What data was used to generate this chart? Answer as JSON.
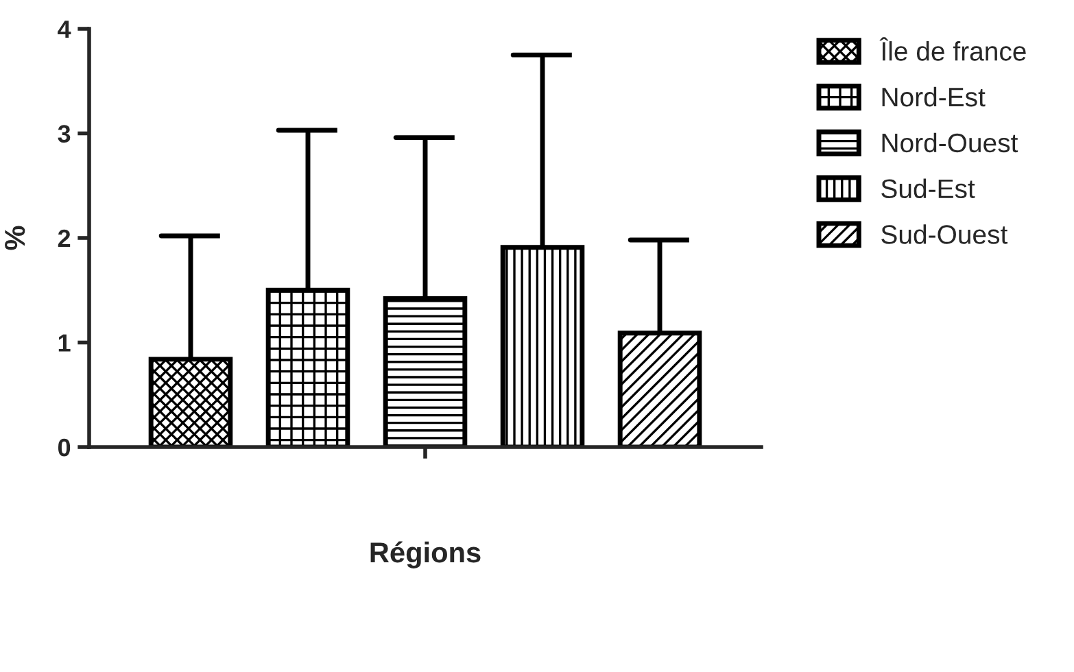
{
  "chart_data": {
    "type": "bar",
    "xlabel": "Régions",
    "ylabel": "%",
    "categories": [
      null
    ],
    "series": [
      {
        "name": "Île de france",
        "color": "#000000",
        "values": [
          0.84
        ],
        "errors": [
          [
            0.84,
            2.02
          ]
        ]
      },
      {
        "name": "Nord-Est",
        "color": "#000000",
        "values": [
          1.5
        ],
        "errors": [
          [
            1.5,
            3.03
          ]
        ]
      },
      {
        "name": "Nord-Ouest",
        "color": "#000000",
        "values": [
          1.42
        ],
        "errors": [
          [
            1.42,
            2.96
          ]
        ]
      },
      {
        "name": "Sud-Est",
        "color": "#000000",
        "values": [
          1.91
        ],
        "errors": [
          [
            1.91,
            3.75
          ]
        ]
      },
      {
        "name": "Sud-Ouest",
        "color": "#000000",
        "values": [
          1.09
        ],
        "errors": [
          [
            1.09,
            1.98
          ]
        ]
      }
    ],
    "ylim": [
      0,
      4
    ],
    "yticks": [
      0,
      1,
      2,
      3,
      4
    ],
    "grid": false,
    "legend": "top right"
  }
}
